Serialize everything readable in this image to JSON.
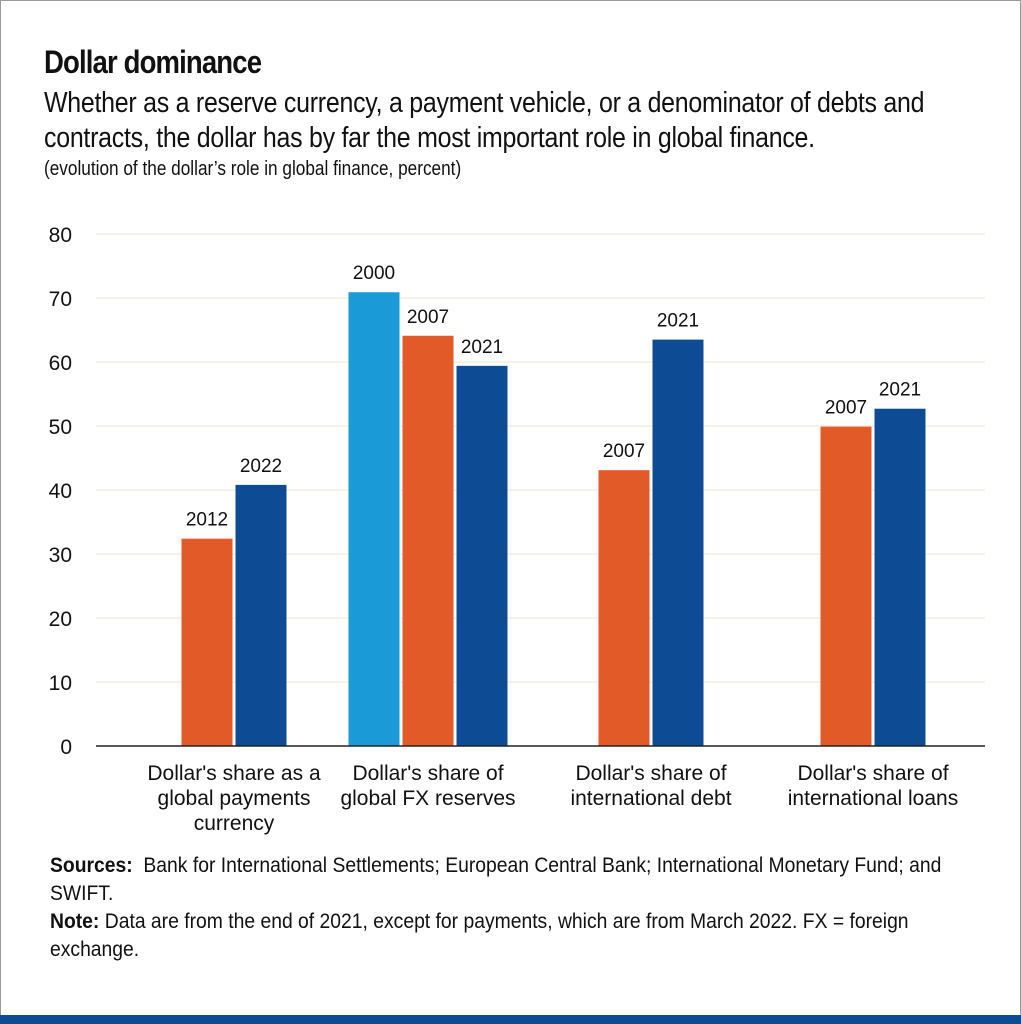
{
  "header": {
    "title": "Dollar dominance",
    "subtitle": "Whether as a reserve currency, a payment vehicle, or a denominator of debts and contracts, the dollar has by far the most important role in global finance.",
    "unit_note": "(evolution of the dollar’s role in global finance, percent)"
  },
  "footer": {
    "sources_label": "Sources:",
    "sources_text": "Bank for International Settlements; European Central Bank; International Monetary Fund; and SWIFT.",
    "note_label": "Note:",
    "note_text": "Data are from the end of 2021, except for payments, which are from March 2022. FX = foreign exchange."
  },
  "colors": {
    "2000": "#1a9bd7",
    "2007": "#e35a29",
    "2012": "#e35a29",
    "2021": "#0d4c94",
    "2022": "#0d4c94",
    "grid": "#ede6d2",
    "axis": "#222222"
  },
  "chart_data": {
    "type": "bar",
    "title": "Dollar dominance",
    "ylim": [
      0,
      80
    ],
    "yticks": [
      0,
      10,
      20,
      30,
      40,
      50,
      60,
      70,
      80
    ],
    "grid": true,
    "categories": [
      {
        "label": [
          "Dollar's share as a",
          "global payments",
          "currency"
        ],
        "bars": [
          {
            "year": "2012",
            "value": 32.4
          },
          {
            "year": "2022",
            "value": 40.8
          }
        ]
      },
      {
        "label": [
          "Dollar's share of",
          "global FX reserves"
        ],
        "bars": [
          {
            "year": "2000",
            "value": 70.9
          },
          {
            "year": "2007",
            "value": 64.1
          },
          {
            "year": "2021",
            "value": 59.4
          }
        ]
      },
      {
        "label": [
          "Dollar's share of",
          "international debt"
        ],
        "bars": [
          {
            "year": "2007",
            "value": 43.1
          },
          {
            "year": "2021",
            "value": 63.5
          }
        ]
      },
      {
        "label": [
          "Dollar's share of",
          "international loans"
        ],
        "bars": [
          {
            "year": "2007",
            "value": 49.9
          },
          {
            "year": "2021",
            "value": 52.7
          }
        ]
      }
    ]
  }
}
